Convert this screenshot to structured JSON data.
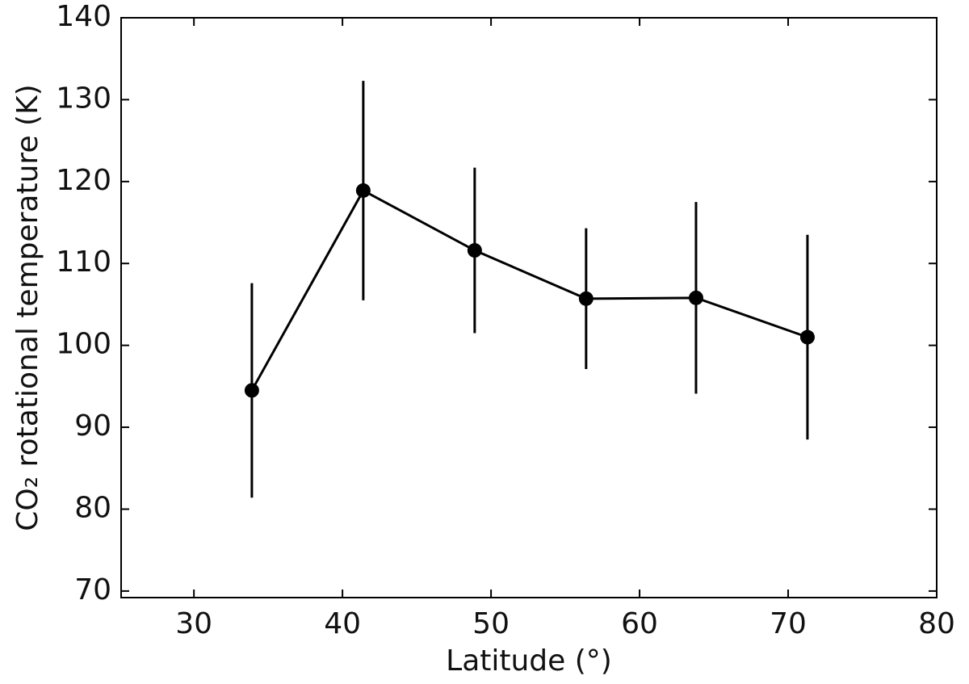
{
  "chart_data": {
    "type": "line",
    "xlabel": "Latitude (°)",
    "ylabel": "CO₂ rotational temperature (K)",
    "x": [
      33.9,
      41.4,
      48.9,
      56.4,
      63.8,
      71.3
    ],
    "values": [
      94.5,
      118.9,
      111.6,
      105.7,
      105.8,
      101.0
    ],
    "errors": [
      13.1,
      13.4,
      10.1,
      8.6,
      11.7,
      12.5
    ],
    "color": "#000000",
    "xlim": [
      25.1,
      80
    ],
    "xticks": [
      30,
      40,
      50,
      60,
      70,
      80
    ],
    "ylim": [
      69.2,
      140
    ],
    "yticks": [
      70,
      80,
      90,
      100,
      110,
      120,
      130,
      140
    ],
    "grid": false
  }
}
